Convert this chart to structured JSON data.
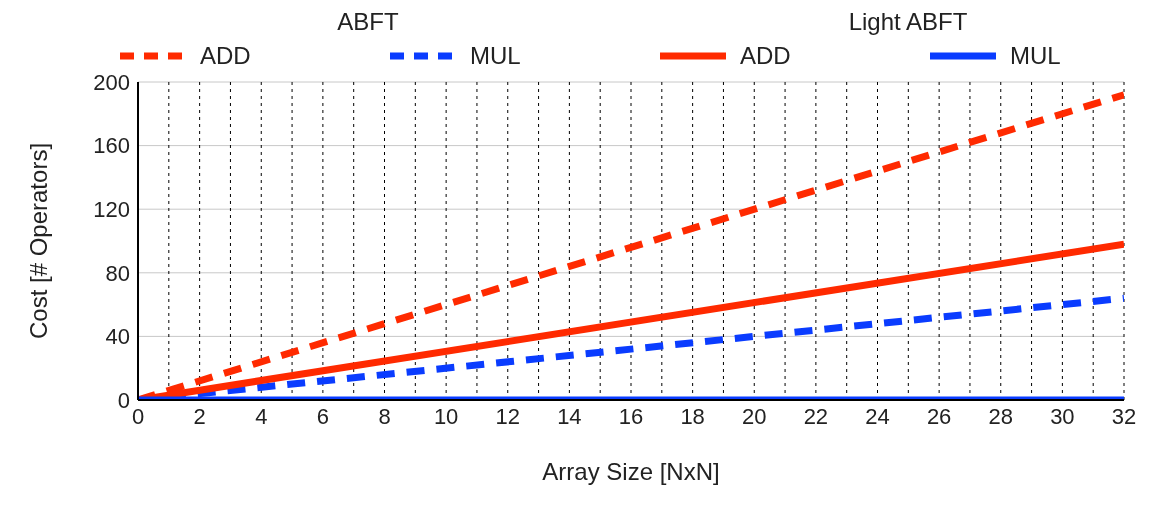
{
  "chart_data": {
    "type": "line",
    "xlabel": "Array Size [NxN]",
    "ylabel": "Cost [# Operators]",
    "annotations": [
      "ABFT",
      "Light ABFT"
    ],
    "x": [
      0,
      32
    ],
    "series": [
      {
        "name": "ADD",
        "color": "#ff2a00",
        "values": [
          0,
          192
        ],
        "line_style": "dashed"
      },
      {
        "name": "MUL",
        "color": "#0a3cff",
        "values": [
          0,
          64
        ],
        "line_style": "dashed"
      },
      {
        "name": "ADD",
        "color": "#ff2a00",
        "values": [
          0,
          98
        ],
        "line_style": "solid"
      },
      {
        "name": "MUL",
        "color": "#0a3cff",
        "values": [
          0,
          0
        ],
        "line_style": "solid"
      }
    ],
    "xlim": [
      0,
      32
    ],
    "xticks": [
      0,
      {
        "value": 1,
        "label": null
      },
      2,
      {
        "value": 3,
        "label": null
      },
      4,
      {
        "value": 5,
        "label": null
      },
      6,
      {
        "value": 7,
        "label": null
      },
      8,
      {
        "value": 9,
        "label": null
      },
      10,
      {
        "value": 11,
        "label": null
      },
      12,
      {
        "value": 13,
        "label": null
      },
      14,
      {
        "value": 15,
        "label": null
      },
      16,
      {
        "value": 17,
        "label": null
      },
      18,
      {
        "value": 19,
        "label": null
      },
      20,
      {
        "value": 21,
        "label": null
      },
      22,
      {
        "value": 23,
        "label": null
      },
      24,
      {
        "value": 25,
        "label": null
      },
      26,
      {
        "value": 27,
        "label": null
      },
      28,
      {
        "value": 29,
        "label": null
      },
      30,
      {
        "value": 31,
        "label": null
      },
      32
    ],
    "ylim": [
      0,
      200
    ],
    "yticks": [
      0,
      40,
      80,
      120,
      160,
      200
    ],
    "grid": true,
    "legend": "top",
    "marker": "none"
  }
}
